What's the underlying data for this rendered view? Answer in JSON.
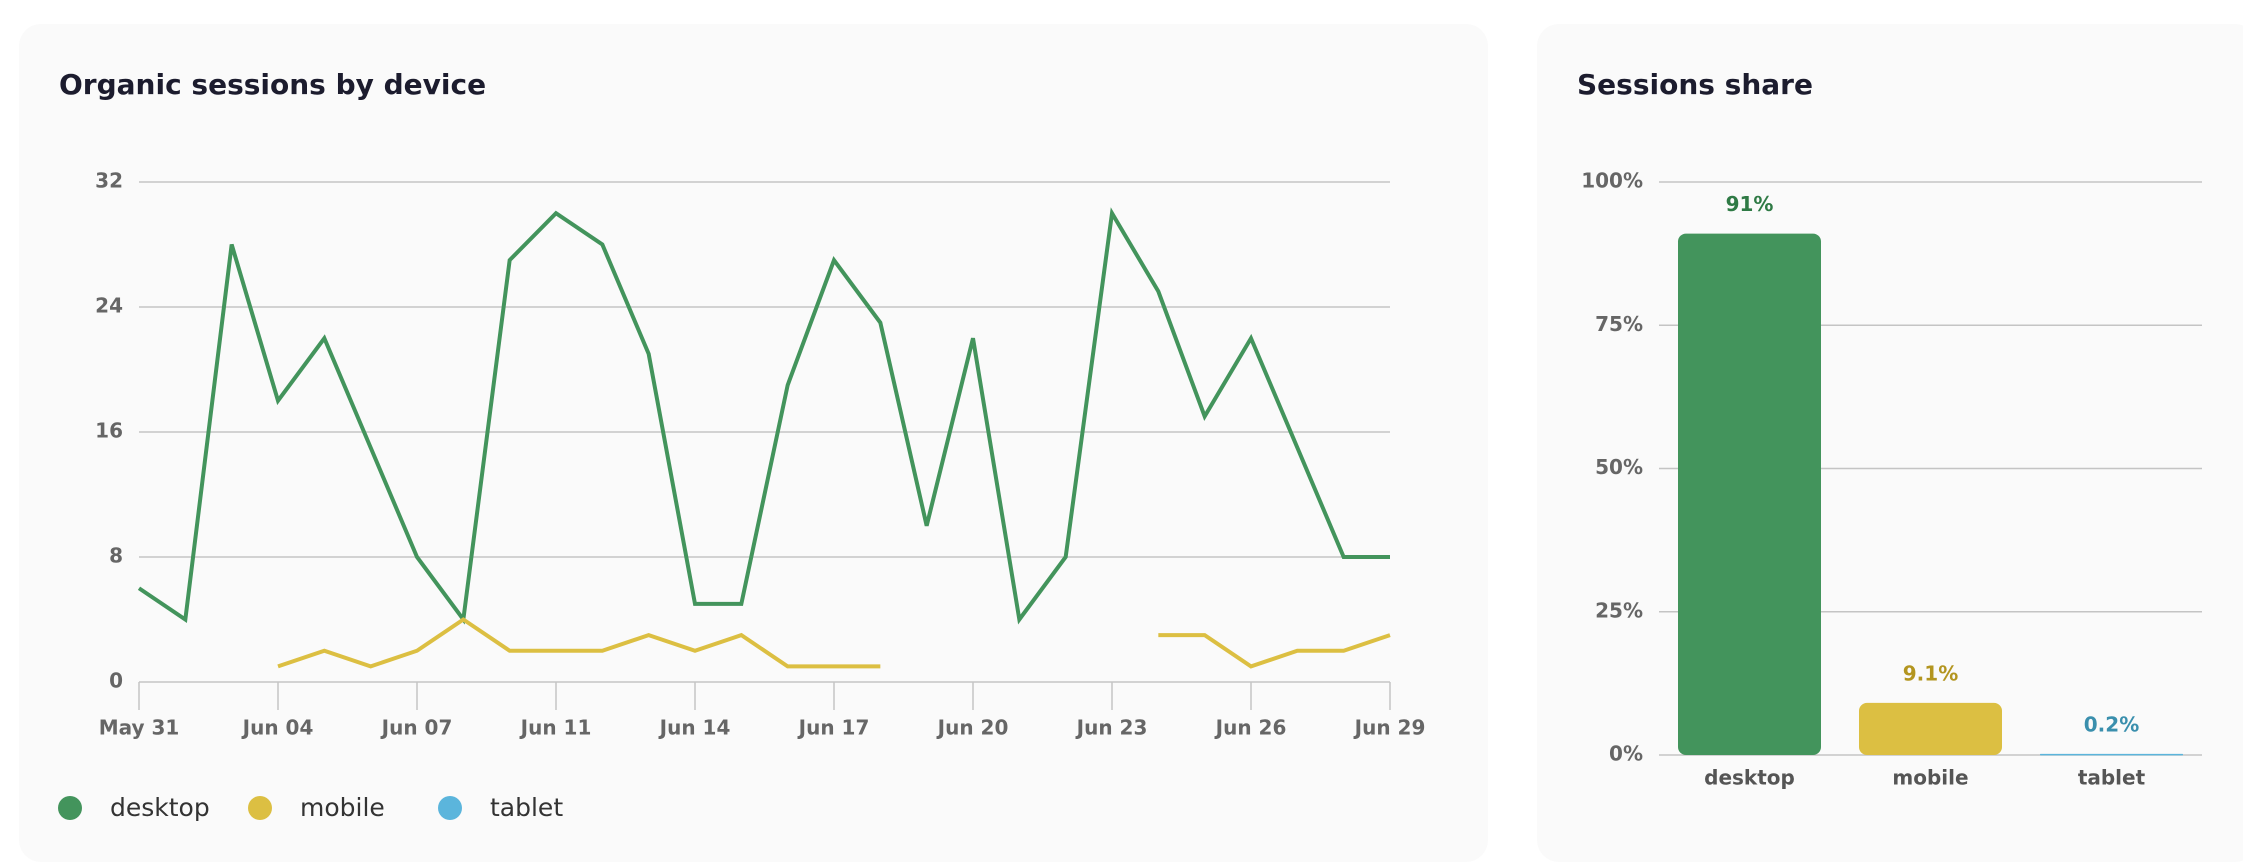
{
  "chart_data": [
    {
      "type": "line",
      "title": "Organic sessions by device",
      "categories": [
        "May 31",
        null,
        null,
        "Jun 04",
        null,
        null,
        "Jun 07",
        null,
        null,
        "Jun 11",
        null,
        null,
        "Jun 14",
        null,
        null,
        "Jun 17",
        null,
        null,
        "Jun 20",
        null,
        null,
        "Jun 23",
        null,
        null,
        "Jun 26",
        null,
        null,
        "Jun 29"
      ],
      "series": [
        {
          "name": "desktop",
          "color": "#43945c",
          "values": [
            6,
            4,
            28,
            18,
            22,
            15,
            8,
            4,
            27,
            30,
            28,
            21,
            5,
            5,
            19,
            27,
            23,
            10,
            22,
            4,
            8,
            30,
            25,
            17,
            22,
            15,
            8,
            8
          ]
        },
        {
          "name": "mobile",
          "color": "#dcbf42",
          "values": [
            null,
            null,
            null,
            1,
            2,
            1,
            2,
            4,
            2,
            2,
            2,
            3,
            2,
            3,
            1,
            1,
            1,
            null,
            null,
            null,
            null,
            null,
            3,
            3,
            1,
            2,
            2,
            3
          ]
        },
        {
          "name": "tablet",
          "color": "#5bb5dc",
          "values": [
            null,
            null,
            null,
            null,
            null,
            null,
            null,
            null,
            null,
            null,
            null,
            null,
            null,
            null,
            null,
            null,
            null,
            null,
            null,
            null,
            null,
            null,
            null,
            null,
            null,
            null,
            null,
            null
          ]
        }
      ],
      "ylim": [
        0,
        32
      ],
      "yticks": [
        0,
        8,
        16,
        24,
        32
      ],
      "grid": true,
      "legend": "bottom"
    },
    {
      "type": "bar",
      "title": "Sessions share",
      "categories": [
        "desktop",
        "mobile",
        "tablet"
      ],
      "values": [
        91,
        9.1,
        0.2
      ],
      "value_labels": [
        "91%",
        "9.1%",
        "0.2%"
      ],
      "colors": [
        "#43945c",
        "#dcbf42",
        "#5bb5dc"
      ],
      "value_label_colors": [
        "#2f7a45",
        "#b3951f",
        "#3a8fad"
      ],
      "ylim": [
        0,
        100
      ],
      "yticks": [
        {
          "value": 0,
          "label": "0%"
        },
        {
          "value": 25,
          "label": "25%"
        },
        {
          "value": 50,
          "label": "50%"
        },
        {
          "value": 75,
          "label": "75%"
        },
        {
          "value": 100,
          "label": "100%"
        }
      ],
      "grid": true
    }
  ]
}
